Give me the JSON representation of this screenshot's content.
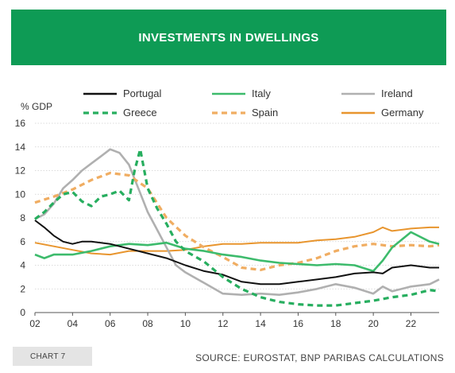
{
  "header": {
    "title": "INVESTMENTS IN DWELLINGS"
  },
  "footer": {
    "chart_number": "CHART 7",
    "source": "SOURCE: EUROSTAT, BNP PARIBAS CALCULATIONS"
  },
  "colors": {
    "header_bg": "#0e9b55",
    "Portugal": "#111111",
    "Italy": "#3dbb6c",
    "Ireland": "#b0b0b0",
    "Greece": "#27ae5f",
    "Spain": "#f0ad62",
    "Germany": "#e8952e"
  },
  "chart_data": {
    "type": "line",
    "title": "INVESTMENTS IN DWELLINGS",
    "ylabel": "% GDP",
    "xlabel": "",
    "ylim": [
      0,
      16
    ],
    "yticks": [
      0,
      2,
      4,
      6,
      8,
      10,
      12,
      14,
      16
    ],
    "xlim": [
      2002,
      2023.5
    ],
    "xticks": [
      "02",
      "04",
      "06",
      "08",
      "10",
      "12",
      "14",
      "16",
      "18",
      "20",
      "22"
    ],
    "grid": "horizontal",
    "legend_position": "top",
    "series": [
      {
        "name": "Portugal",
        "style": "solid",
        "x": [
          2002,
          2002.5,
          2003,
          2003.5,
          2004,
          2004.5,
          2005,
          2006,
          2007,
          2008,
          2009,
          2010,
          2011,
          2012,
          2013,
          2014,
          2015,
          2016,
          2017,
          2018,
          2019,
          2020,
          2020.5,
          2021,
          2022,
          2023,
          2023.5
        ],
        "values": [
          7.8,
          7.2,
          6.5,
          6.0,
          5.8,
          6.0,
          6.0,
          5.8,
          5.4,
          5.0,
          4.6,
          4.0,
          3.5,
          3.2,
          2.6,
          2.4,
          2.4,
          2.6,
          2.8,
          3.0,
          3.3,
          3.4,
          3.3,
          3.8,
          4.0,
          3.8,
          3.8
        ]
      },
      {
        "name": "Italy",
        "style": "solid",
        "x": [
          2002,
          2002.5,
          2003,
          2004,
          2005,
          2006,
          2007,
          2008,
          2009,
          2010,
          2011,
          2012,
          2013,
          2014,
          2015,
          2016,
          2017,
          2018,
          2019,
          2020,
          2020.5,
          2021,
          2022,
          2023,
          2023.5
        ],
        "values": [
          4.9,
          4.6,
          4.9,
          4.9,
          5.2,
          5.6,
          5.8,
          5.7,
          5.9,
          5.4,
          5.2,
          4.9,
          4.7,
          4.4,
          4.2,
          4.1,
          4.0,
          4.1,
          4.0,
          3.5,
          4.4,
          5.5,
          6.8,
          6.0,
          5.8
        ]
      },
      {
        "name": "Ireland",
        "style": "solid",
        "x": [
          2002,
          2002.5,
          2003,
          2003.5,
          2004,
          2004.5,
          2005,
          2005.5,
          2006,
          2006.5,
          2007,
          2007.5,
          2008,
          2008.5,
          2009,
          2009.5,
          2010,
          2011,
          2012,
          2013,
          2014,
          2015,
          2016,
          2017,
          2018,
          2019,
          2020,
          2020.5,
          2021,
          2022,
          2023,
          2023.5
        ],
        "values": [
          7.9,
          8.3,
          9.2,
          10.5,
          11.2,
          12.0,
          12.6,
          13.2,
          13.8,
          13.5,
          12.5,
          10.5,
          8.5,
          7.0,
          5.5,
          4.0,
          3.4,
          2.5,
          1.6,
          1.5,
          1.6,
          1.5,
          1.7,
          2.0,
          2.4,
          2.1,
          1.6,
          2.2,
          1.8,
          2.2,
          2.4,
          2.8
        ]
      },
      {
        "name": "Greece",
        "style": "dashed",
        "x": [
          2002,
          2002.5,
          2003,
          2003.5,
          2004,
          2004.5,
          2005,
          2005.5,
          2006,
          2006.5,
          2007,
          2007.3,
          2007.6,
          2008,
          2008.5,
          2009,
          2009.5,
          2010,
          2011,
          2012,
          2013,
          2014,
          2015,
          2016,
          2017,
          2018,
          2019,
          2020,
          2021,
          2022,
          2023,
          2023.5
        ],
        "values": [
          7.9,
          8.5,
          9.3,
          10.0,
          10.2,
          9.4,
          9.0,
          9.8,
          10.0,
          10.3,
          9.5,
          12.0,
          13.8,
          10.5,
          8.8,
          7.5,
          6.0,
          5.2,
          4.3,
          3.0,
          2.0,
          1.3,
          0.9,
          0.7,
          0.6,
          0.6,
          0.8,
          1.0,
          1.3,
          1.5,
          1.9,
          1.8
        ]
      },
      {
        "name": "Spain",
        "style": "dashed",
        "x": [
          2002,
          2003,
          2004,
          2005,
          2006,
          2007,
          2008,
          2009,
          2010,
          2011,
          2012,
          2013,
          2014,
          2015,
          2016,
          2017,
          2018,
          2019,
          2020,
          2021,
          2022,
          2023,
          2023.5
        ],
        "values": [
          9.3,
          9.8,
          10.4,
          11.2,
          11.8,
          11.6,
          10.5,
          8.0,
          6.5,
          5.5,
          4.7,
          3.8,
          3.6,
          4.0,
          4.2,
          4.6,
          5.2,
          5.6,
          5.8,
          5.6,
          5.7,
          5.6,
          5.7
        ]
      },
      {
        "name": "Germany",
        "style": "solid",
        "x": [
          2002,
          2003,
          2004,
          2005,
          2006,
          2007,
          2008,
          2009,
          2010,
          2011,
          2012,
          2013,
          2014,
          2015,
          2016,
          2017,
          2018,
          2019,
          2020,
          2020.5,
          2021,
          2022,
          2023,
          2023.5
        ],
        "values": [
          5.9,
          5.6,
          5.3,
          5.0,
          4.9,
          5.2,
          5.2,
          5.2,
          5.3,
          5.6,
          5.8,
          5.8,
          5.9,
          5.9,
          5.9,
          6.1,
          6.2,
          6.4,
          6.8,
          7.2,
          6.9,
          7.1,
          7.2,
          7.2
        ]
      }
    ]
  }
}
